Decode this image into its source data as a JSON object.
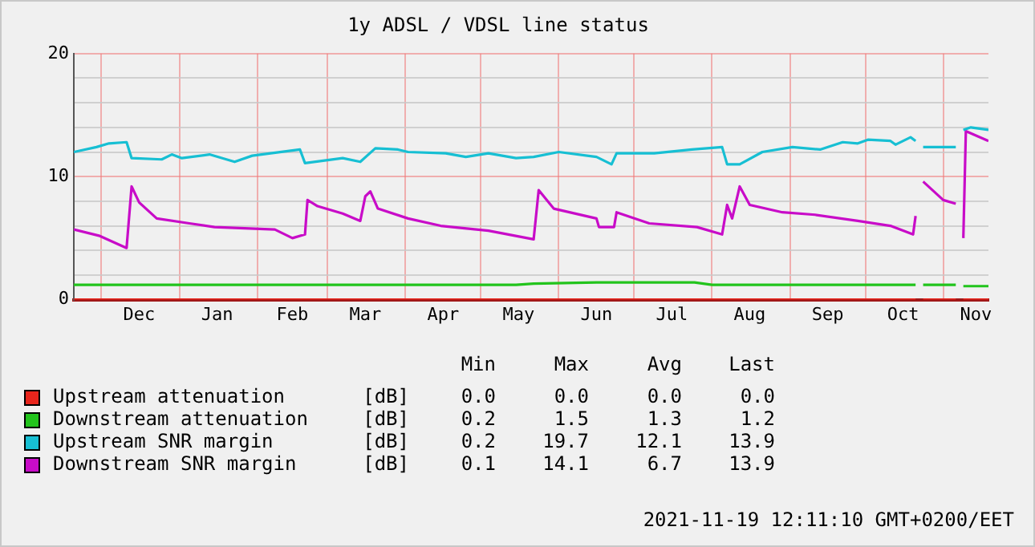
{
  "chart_data": {
    "type": "line",
    "title": "1y ADSL / VDSL line status",
    "xlim": [
      "2020-11-20",
      "2021-11-19"
    ],
    "xticks": [
      {
        "value": "2020-12-01",
        "label": null
      },
      {
        "value": "2020-12-16",
        "label": "Dec"
      },
      {
        "value": "2021-01-01",
        "label": null
      },
      {
        "value": "2021-01-16",
        "label": "Jan"
      },
      {
        "value": "2021-02-01",
        "label": null
      },
      {
        "value": "2021-02-15",
        "label": "Feb"
      },
      {
        "value": "2021-03-01",
        "label": null
      },
      {
        "value": "2021-03-16",
        "label": "Mar"
      },
      {
        "value": "2021-04-01",
        "label": null
      },
      {
        "value": "2021-04-16",
        "label": "Apr"
      },
      {
        "value": "2021-05-01",
        "label": null
      },
      {
        "value": "2021-05-16",
        "label": "May"
      },
      {
        "value": "2021-06-01",
        "label": null
      },
      {
        "value": "2021-06-16",
        "label": "Jun"
      },
      {
        "value": "2021-07-01",
        "label": null
      },
      {
        "value": "2021-07-16",
        "label": "Jul"
      },
      {
        "value": "2021-08-01",
        "label": null
      },
      {
        "value": "2021-08-16",
        "label": "Aug"
      },
      {
        "value": "2021-09-01",
        "label": null
      },
      {
        "value": "2021-09-16",
        "label": "Sep"
      },
      {
        "value": "2021-10-01",
        "label": null
      },
      {
        "value": "2021-10-16",
        "label": "Oct"
      },
      {
        "value": "2021-11-01",
        "label": null
      },
      {
        "value": "2021-11-14",
        "label": "Nov"
      }
    ],
    "ylim": [
      0,
      20
    ],
    "yticks": [
      0,
      {
        "value": 2,
        "label": null
      },
      {
        "value": 4,
        "label": null
      },
      {
        "value": 6,
        "label": null
      },
      {
        "value": 8,
        "label": null
      },
      10,
      {
        "value": 12,
        "label": null
      },
      {
        "value": 14,
        "label": null
      },
      {
        "value": 16,
        "label": null
      },
      {
        "value": 18,
        "label": null
      },
      20
    ],
    "grid": true,
    "legend": "bottom",
    "marker": "none",
    "line_style": "solid",
    "series": [
      {
        "name": "Upstream attenuation",
        "color": "#e8251c",
        "x": [
          "2020-11-20",
          "2021-10-21",
          "2021-10-22",
          "2021-10-24",
          "2021-11-06",
          "2021-11-07",
          "2021-11-09",
          "2021-11-19"
        ],
        "values": [
          0,
          0,
          null,
          0,
          0,
          null,
          0,
          0
        ]
      },
      {
        "name": "Downstream attenuation",
        "color": "#22c41c",
        "x": [
          "2020-11-20",
          "2021-05-15",
          "2021-05-22",
          "2021-06-16",
          "2021-07-25",
          "2021-08-01",
          "2021-10-21",
          "2021-10-22",
          "2021-10-24",
          "2021-11-06",
          "2021-11-07",
          "2021-11-09",
          "2021-11-19"
        ],
        "values": [
          1.2,
          1.2,
          1.3,
          1.4,
          1.4,
          1.2,
          1.2,
          null,
          1.2,
          1.2,
          null,
          1.1,
          1.1
        ]
      },
      {
        "name": "Upstream SNR margin",
        "color": "#17bfd3",
        "x": [
          "2020-11-20",
          "2020-11-29",
          "2020-12-04",
          "2020-12-11",
          "2020-12-13",
          "2020-12-25",
          "2020-12-29",
          "2021-01-02",
          "2021-01-13",
          "2021-01-23",
          "2021-01-30",
          "2021-02-18",
          "2021-02-20",
          "2021-03-07",
          "2021-03-14",
          "2021-03-20",
          "2021-03-29",
          "2021-04-02",
          "2021-04-17",
          "2021-04-25",
          "2021-05-04",
          "2021-05-15",
          "2021-05-22",
          "2021-06-01",
          "2021-06-16",
          "2021-06-22",
          "2021-06-24",
          "2021-07-09",
          "2021-07-24",
          "2021-08-05",
          "2021-08-07",
          "2021-08-12",
          "2021-08-21",
          "2021-09-02",
          "2021-09-13",
          "2021-09-22",
          "2021-09-28",
          "2021-10-02",
          "2021-10-11",
          "2021-10-13",
          "2021-10-19",
          "2021-10-21",
          "2021-10-22",
          "2021-10-24",
          "2021-11-06",
          "2021-11-07",
          "2021-11-09",
          "2021-11-12",
          "2021-11-19"
        ],
        "values": [
          12.0,
          12.4,
          12.7,
          12.8,
          11.5,
          11.4,
          11.8,
          11.5,
          11.8,
          11.2,
          11.7,
          12.2,
          11.1,
          11.5,
          11.2,
          12.3,
          12.2,
          12.0,
          11.9,
          11.6,
          11.9,
          11.5,
          11.6,
          12.0,
          11.6,
          11.0,
          11.9,
          11.9,
          12.2,
          12.4,
          11.0,
          11.0,
          12.0,
          12.4,
          12.2,
          12.8,
          12.7,
          13.0,
          12.9,
          12.6,
          13.2,
          12.9,
          null,
          12.4,
          12.4,
          null,
          13.8,
          14.0,
          13.8
        ]
      },
      {
        "name": "Downstream SNR margin",
        "color": "#c80cc8",
        "x": [
          "2020-11-20",
          "2020-11-30",
          "2020-12-11",
          "2020-12-13",
          "2020-12-16",
          "2020-12-23",
          "2021-01-05",
          "2021-01-15",
          "2021-02-08",
          "2021-02-15",
          "2021-02-20",
          "2021-02-21",
          "2021-02-25",
          "2021-03-07",
          "2021-03-14",
          "2021-03-16",
          "2021-03-18",
          "2021-03-21",
          "2021-04-02",
          "2021-04-15",
          "2021-05-04",
          "2021-05-22",
          "2021-05-24",
          "2021-05-30",
          "2021-06-16",
          "2021-06-17",
          "2021-06-23",
          "2021-06-24",
          "2021-07-07",
          "2021-07-26",
          "2021-08-05",
          "2021-08-07",
          "2021-08-09",
          "2021-08-12",
          "2021-08-16",
          "2021-08-29",
          "2021-09-11",
          "2021-09-28",
          "2021-10-11",
          "2021-10-20",
          "2021-10-21",
          "2021-10-22",
          "2021-10-24",
          "2021-11-01",
          "2021-11-06",
          "2021-11-07",
          "2021-11-09",
          "2021-11-10",
          "2021-11-19"
        ],
        "values": [
          5.7,
          5.2,
          4.2,
          9.2,
          7.9,
          6.6,
          6.2,
          5.9,
          5.7,
          5.0,
          5.3,
          8.1,
          7.6,
          7.0,
          6.4,
          8.4,
          8.8,
          7.4,
          6.6,
          6.0,
          5.6,
          4.9,
          8.9,
          7.4,
          6.6,
          5.9,
          5.9,
          7.1,
          6.2,
          5.9,
          5.3,
          7.7,
          6.6,
          9.2,
          7.7,
          7.1,
          6.9,
          6.4,
          6.0,
          5.3,
          6.8,
          null,
          9.6,
          8.1,
          7.8,
          null,
          5.0,
          13.7,
          12.9
        ]
      }
    ],
    "annotations": [
      "Min",
      "Max",
      "Avg",
      "Last",
      "[dB]",
      "0.0",
      "0.0",
      "0.0",
      "0.0",
      "[dB]",
      "0.2",
      "1.5",
      "1.3",
      "1.2",
      "[dB]",
      "0.2",
      "19.7",
      "12.1",
      "13.9",
      "[dB]",
      "0.1",
      "14.1",
      "6.7",
      "13.9",
      "2021-11-19 12:11:10 GMT+0200/EET"
    ]
  }
}
